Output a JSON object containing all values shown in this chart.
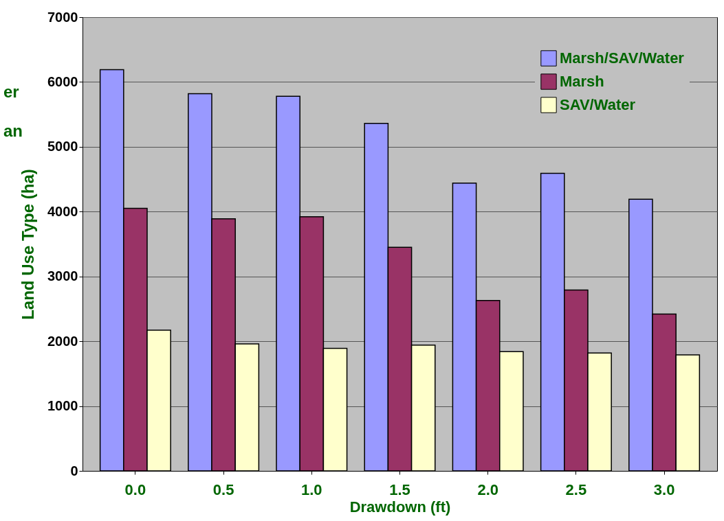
{
  "chart_data": {
    "type": "bar",
    "xlabel": "Drawdown (ft)",
    "ylabel": "Land Use Type (ha)",
    "categories": [
      "0.0",
      "0.5",
      "1.0",
      "1.5",
      "2.0",
      "2.5",
      "3.0"
    ],
    "series": [
      {
        "name": "Marsh/SAV/Water",
        "color": "#9999ff",
        "values": [
          6190,
          5820,
          5780,
          5360,
          4440,
          4590,
          4190
        ]
      },
      {
        "name": "Marsh",
        "color": "#993366",
        "values": [
          4050,
          3890,
          3920,
          3450,
          2630,
          2790,
          2420
        ]
      },
      {
        "name": "SAV/Water",
        "color": "#ffffcc",
        "values": [
          2170,
          1960,
          1890,
          1940,
          1840,
          1820,
          1790
        ]
      }
    ],
    "ylim": [
      0,
      7000
    ],
    "yticks": [
      0,
      1000,
      2000,
      3000,
      4000,
      5000,
      6000,
      7000
    ],
    "grid": "y",
    "legend": "top right",
    "annotations": [
      "er",
      "an"
    ]
  }
}
